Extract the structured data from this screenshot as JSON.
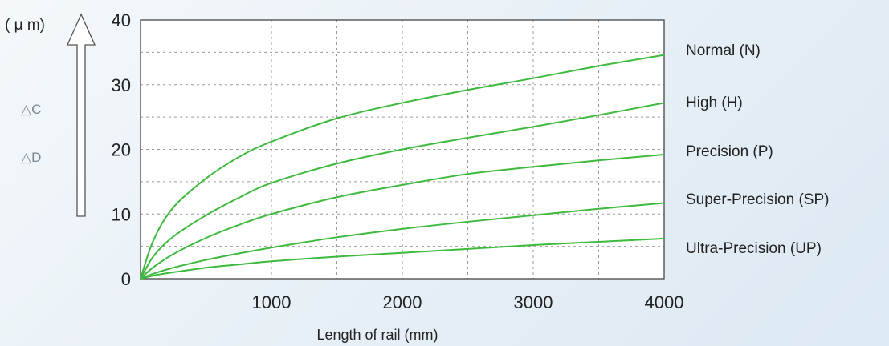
{
  "chart_data": {
    "type": "line",
    "xlabel": "Length of rail (mm)",
    "ylabel_unit": "( μ m)",
    "y_side_labels": [
      "△C",
      "△D"
    ],
    "xlim": [
      0,
      4000
    ],
    "ylim": [
      0,
      40
    ],
    "x_ticks": [
      1000,
      2000,
      3000,
      4000
    ],
    "x_tick_labels": [
      "1000",
      "2000",
      "3000",
      "4000"
    ],
    "y_ticks": [
      0,
      10,
      20,
      30,
      40
    ],
    "y_tick_labels": [
      "0",
      "10",
      "20",
      "30",
      "40"
    ],
    "grid": true,
    "line_color": "#3dba3d",
    "series": [
      {
        "name": "Normal (N)",
        "x": [
          0,
          100,
          250,
          500,
          750,
          1000,
          1500,
          2000,
          2500,
          3000,
          3500,
          4000
        ],
        "values": [
          0,
          6,
          11,
          15.5,
          18.8,
          21.2,
          24.8,
          27.2,
          29.2,
          31,
          32.9,
          34.6
        ]
      },
      {
        "name": "High (H)",
        "x": [
          0,
          100,
          250,
          500,
          750,
          1000,
          1500,
          2000,
          2500,
          3000,
          3500,
          4000
        ],
        "values": [
          0,
          3.5,
          6.5,
          9.8,
          12.5,
          14.8,
          17.8,
          20,
          21.8,
          23.5,
          25.3,
          27.2
        ]
      },
      {
        "name": "Precision (P)",
        "x": [
          0,
          100,
          250,
          500,
          750,
          1000,
          1500,
          2000,
          2500,
          3000,
          3500,
          4000
        ],
        "values": [
          0,
          1.8,
          3.8,
          6.3,
          8.3,
          10,
          12.6,
          14.5,
          16.2,
          17.3,
          18.3,
          19.2
        ]
      },
      {
        "name": "Super-Precision (SP)",
        "x": [
          0,
          100,
          250,
          500,
          750,
          1000,
          1500,
          2000,
          2500,
          3000,
          3500,
          4000
        ],
        "values": [
          0,
          0.8,
          1.7,
          2.9,
          3.9,
          4.8,
          6.4,
          7.7,
          8.8,
          9.8,
          10.8,
          11.7
        ]
      },
      {
        "name": "Ultra-Precision (UP)",
        "x": [
          0,
          100,
          250,
          500,
          750,
          1000,
          1500,
          2000,
          2500,
          3000,
          3500,
          4000
        ],
        "values": [
          0,
          0.5,
          1,
          1.7,
          2.2,
          2.7,
          3.4,
          4,
          4.6,
          5.2,
          5.7,
          6.2
        ]
      }
    ]
  }
}
